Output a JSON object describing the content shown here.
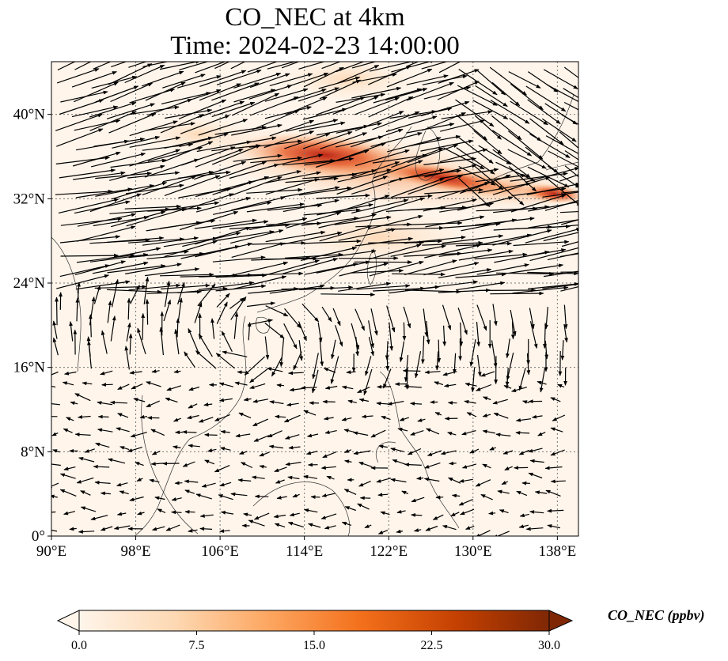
{
  "title": {
    "line1": "CO_NEC at 4km",
    "line2": "Time: 2024-02-23 14:00:00"
  },
  "map": {
    "lon_range": [
      90,
      140
    ],
    "lat_range": [
      0,
      45
    ],
    "x_ticks": [
      {
        "value": 90,
        "label": "90°E"
      },
      {
        "value": 98,
        "label": "98°E"
      },
      {
        "value": 106,
        "label": "106°E"
      },
      {
        "value": 114,
        "label": "114°E"
      },
      {
        "value": 122,
        "label": "122°E"
      },
      {
        "value": 130,
        "label": "130°E"
      },
      {
        "value": 138,
        "label": "138°E"
      }
    ],
    "y_ticks": [
      {
        "value": 0,
        "label": "0°"
      },
      {
        "value": 8,
        "label": "8°N"
      },
      {
        "value": 16,
        "label": "16°N"
      },
      {
        "value": 24,
        "label": "24°N"
      },
      {
        "value": 32,
        "label": "32°N"
      },
      {
        "value": 40,
        "label": "40°N"
      }
    ],
    "gridlines": true,
    "plume_color_hex": "#d7301f",
    "background_color_hex": "#fff5eb"
  },
  "colorbar": {
    "label": "CO_NEC (ppbv)",
    "min": 0,
    "max": 30,
    "ticks": [
      "0.0",
      "7.5",
      "15.0",
      "22.5",
      "30.0"
    ],
    "colormap": [
      "#fff5eb",
      "#fdd9b4",
      "#fda762",
      "#f3701b",
      "#c54102",
      "#7f2704"
    ],
    "extend": "both"
  }
}
